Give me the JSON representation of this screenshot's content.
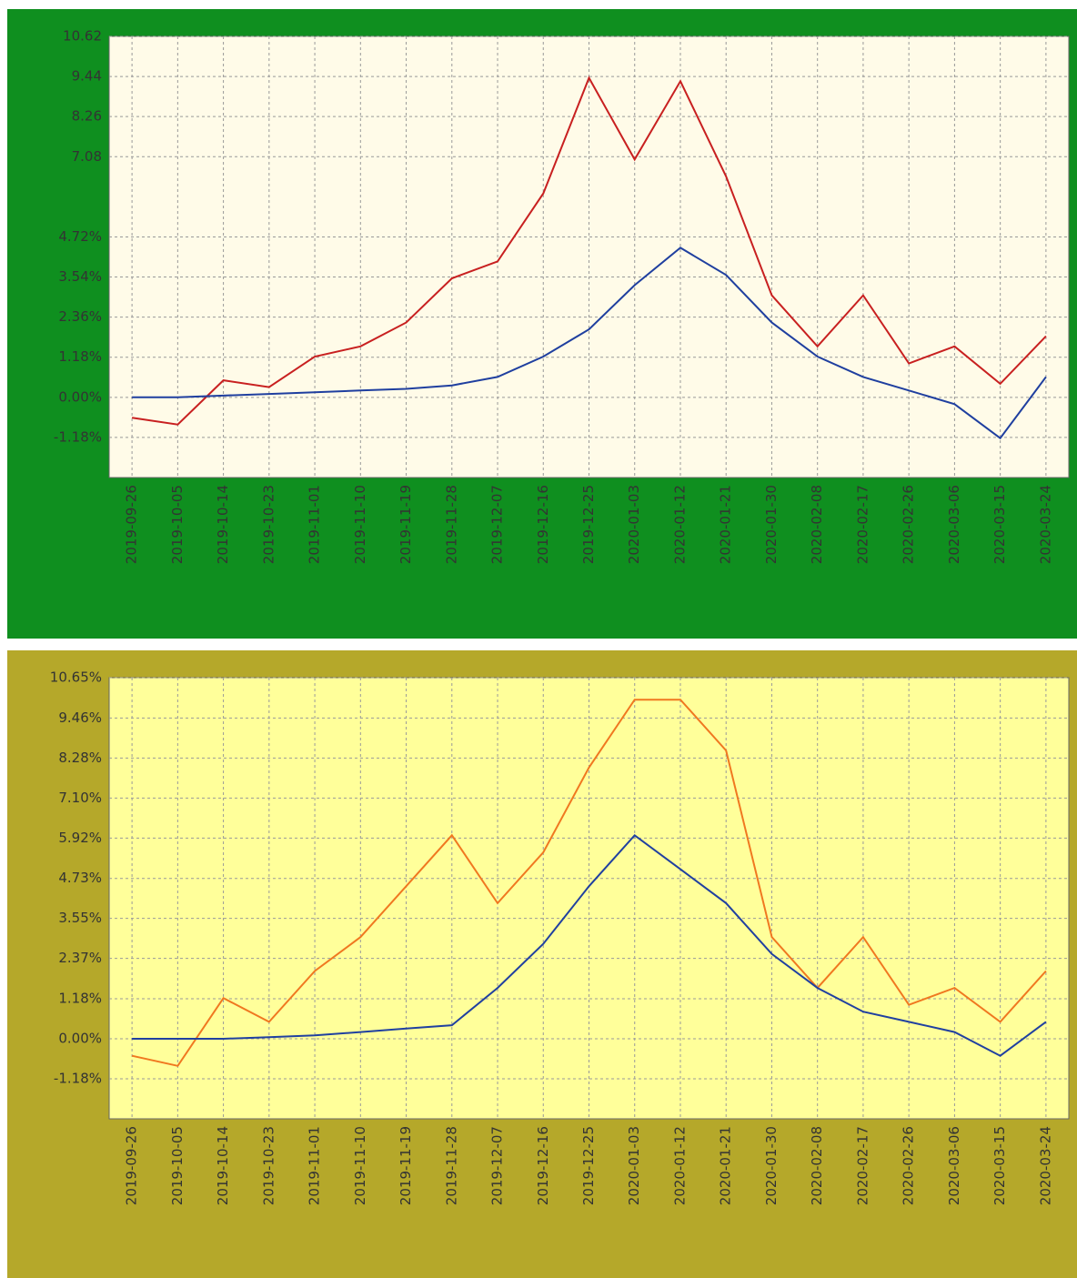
{
  "chart_data": [
    {
      "type": "line",
      "categories": [
        "2019-09-26",
        "2019-10-05",
        "2019-10-14",
        "2019-10-23",
        "2019-11-01",
        "2019-11-10",
        "2019-11-19",
        "2019-11-28",
        "2019-12-07",
        "2019-12-16",
        "2019-12-25",
        "2020-01-03",
        "2020-01-12",
        "2020-01-21",
        "2020-01-30",
        "2020-02-08",
        "2020-02-17",
        "2020-02-26",
        "2020-03-06",
        "2020-03-15",
        "2020-03-24"
      ],
      "series": [
        {
          "color": "#c82020",
          "values": [
            -0.6,
            -0.8,
            0.5,
            0.3,
            1.2,
            1.5,
            2.2,
            3.5,
            4.0,
            6.0,
            9.4,
            7.0,
            9.3,
            6.5,
            3.0,
            1.5,
            3.0,
            1.0,
            1.5,
            0.4,
            1.8
          ]
        },
        {
          "color": "#1f3f9f",
          "values": [
            0.0,
            0.0,
            0.05,
            0.1,
            0.15,
            0.2,
            0.25,
            0.35,
            0.6,
            1.2,
            2.0,
            3.3,
            4.4,
            3.6,
            2.2,
            1.2,
            0.6,
            0.2,
            -0.2,
            -1.2,
            0.6
          ]
        }
      ],
      "ylim": [
        -2.36,
        10.62
      ],
      "yticks": [
        {
          "value": -1.18,
          "label": "-1.18%"
        },
        {
          "value": 0,
          "label": "0.00%"
        },
        {
          "value": 1.18,
          "label": "1.18%"
        },
        {
          "value": 2.36,
          "label": "2.36%"
        },
        {
          "value": 3.54,
          "label": "3.54%"
        },
        {
          "value": 4.72,
          "label": "4.72%"
        },
        {
          "value": 7.08,
          "label": "7.08"
        },
        {
          "value": 8.26,
          "label": "8.26"
        },
        {
          "value": 9.44,
          "label": "9.44"
        },
        {
          "value": 10.62,
          "label": "10.62"
        }
      ],
      "grid": true
    },
    {
      "type": "line",
      "categories": [
        "2019-09-26",
        "2019-10-05",
        "2019-10-14",
        "2019-10-23",
        "2019-11-01",
        "2019-11-10",
        "2019-11-19",
        "2019-11-28",
        "2019-12-07",
        "2019-12-16",
        "2019-12-25",
        "2020-01-03",
        "2020-01-12",
        "2020-01-21",
        "2020-01-30",
        "2020-02-08",
        "2020-02-17",
        "2020-02-26",
        "2020-03-06",
        "2020-03-15",
        "2020-03-24"
      ],
      "series": [
        {
          "color": "#f07820",
          "values": [
            -0.5,
            -0.8,
            1.2,
            0.5,
            2.0,
            3.0,
            4.5,
            6.0,
            4.0,
            5.5,
            8.0,
            10.0,
            10.0,
            8.5,
            3.0,
            1.5,
            3.0,
            1.0,
            1.5,
            0.5,
            2.0
          ]
        },
        {
          "color": "#2040a0",
          "values": [
            0.0,
            0.0,
            0.0,
            0.05,
            0.1,
            0.2,
            0.3,
            0.4,
            1.5,
            2.8,
            4.5,
            6.0,
            5.0,
            4.0,
            2.5,
            1.5,
            0.8,
            0.5,
            0.2,
            -0.5,
            0.5
          ]
        }
      ],
      "ylim": [
        -2.36,
        10.65
      ],
      "yticks": [
        {
          "value": -1.18,
          "label": "-1.18%"
        },
        {
          "value": 0,
          "label": "0.00%"
        },
        {
          "value": 1.18,
          "label": "1.18%"
        },
        {
          "value": 2.37,
          "label": "2.37%"
        },
        {
          "value": 3.55,
          "label": "3.55%"
        },
        {
          "value": 4.73,
          "label": "4.73%"
        },
        {
          "value": 5.92,
          "label": "5.92%"
        },
        {
          "value": 7.1,
          "label": "7.10%"
        },
        {
          "value": 8.28,
          "label": "8.28%"
        },
        {
          "value": 9.46,
          "label": "9.46%"
        },
        {
          "value": 10.65,
          "label": "10.65%"
        }
      ],
      "grid": true
    }
  ]
}
